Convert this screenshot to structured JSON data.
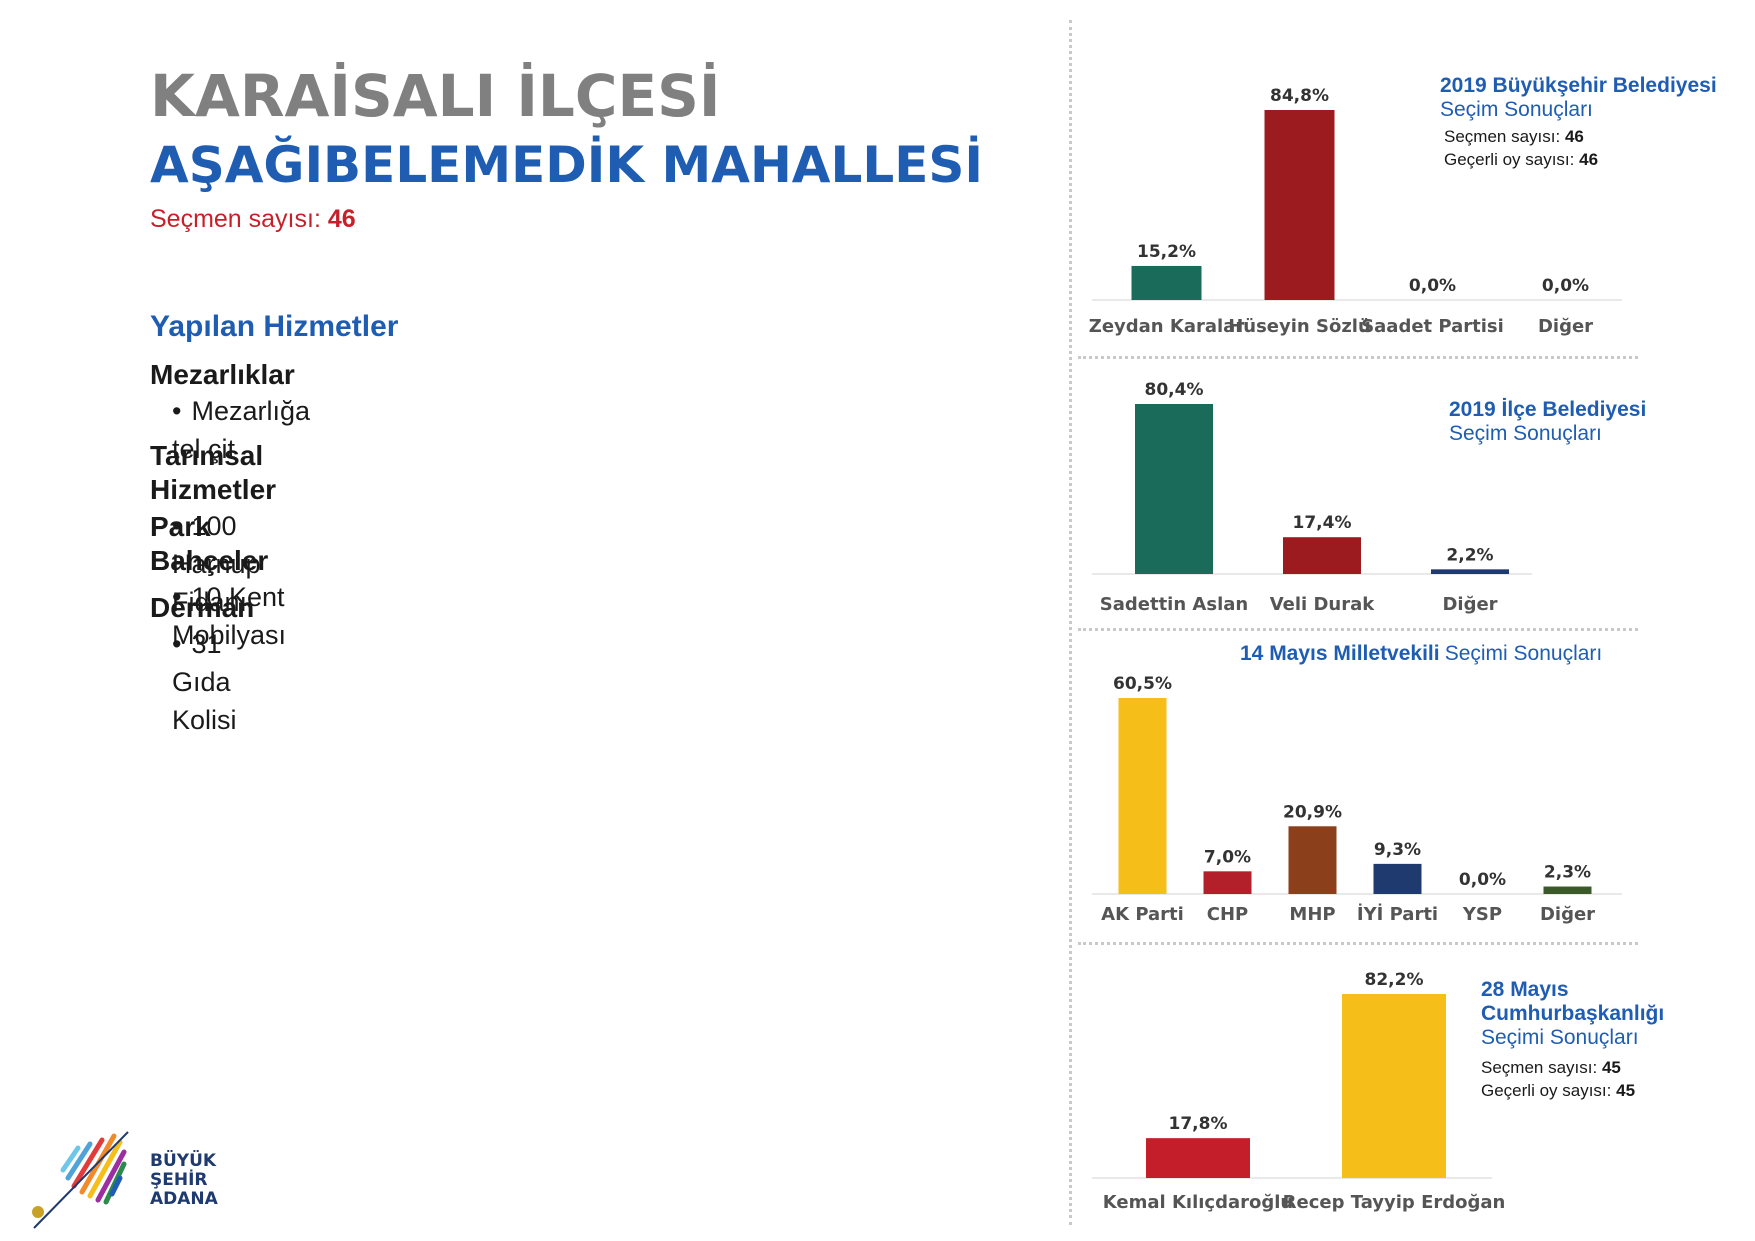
{
  "header": {
    "district": "KARAİSALI İLÇESİ",
    "neighborhood": "AŞAĞIBELEMEDİK MAHALLESİ",
    "voters_label": "Seçmen sayısı:",
    "voters_value": "46"
  },
  "services": {
    "title": "Yapılan Hizmetler",
    "groups": [
      {
        "heading": "Mezarlıklar",
        "items": [
          "Mezarlığa tel çit"
        ]
      },
      {
        "heading": "Tarımsal Hizmetler",
        "items": [
          "100 Harnup Fidanı"
        ]
      },
      {
        "heading": "Park Bahçeler",
        "items": [
          "10 Kent Mobilyası"
        ]
      },
      {
        "heading": "Derman",
        "items": [
          "31 Gıda Kolisi"
        ]
      }
    ]
  },
  "logo": {
    "line1": "BÜYÜK",
    "line2": "ŞEHİR",
    "line3": "ADANA"
  },
  "chart_data": [
    {
      "type": "bar",
      "title": "2019 Büyükşehir Belediyesi",
      "subtitle": "Seçim Sonuçları",
      "stats": [
        {
          "label": "Seçmen sayısı:",
          "value": "46"
        },
        {
          "label": "Geçerli oy sayısı:",
          "value": "46"
        }
      ],
      "categories": [
        "Zeydan Karalar",
        "Hüseyin Sözlü",
        "Saadet Partisi",
        "Diğer"
      ],
      "values": [
        15.2,
        84.8,
        0.0,
        0.0
      ],
      "value_labels": [
        "15,2%",
        "84,8%",
        "0,0%",
        "0,0%"
      ],
      "colors": [
        "#1a6b5a",
        "#9b1b1f",
        "#cccccc",
        "#cccccc"
      ],
      "ylim": [
        0,
        84.8
      ]
    },
    {
      "type": "bar",
      "title": "2019 İlçe Belediyesi",
      "subtitle": "Seçim Sonuçları",
      "stats": [],
      "categories": [
        "Sadettin Aslan",
        "Veli Durak",
        "Diğer"
      ],
      "values": [
        80.4,
        17.4,
        2.2
      ],
      "value_labels": [
        "80,4%",
        "17,4%",
        "2,2%"
      ],
      "colors": [
        "#1a6b5a",
        "#9b1b1f",
        "#1f3a6e"
      ],
      "ylim": [
        0,
        80.4
      ]
    },
    {
      "type": "bar",
      "title": "14 Mayıs Milletvekili",
      "subtitle": "Seçimi Sonuçları",
      "stats": [],
      "categories": [
        "AK Parti",
        "CHP",
        "MHP",
        "İYİ Parti",
        "YSP",
        "Diğer"
      ],
      "values": [
        60.5,
        7.0,
        20.9,
        9.3,
        0.0,
        2.3
      ],
      "value_labels": [
        "60,5%",
        "7,0%",
        "20,9%",
        "9,3%",
        "0,0%",
        "2,3%"
      ],
      "colors": [
        "#f6be18",
        "#b3202a",
        "#8b3f1a",
        "#1f3a6e",
        "#cccccc",
        "#3a5a2a"
      ],
      "ylim": [
        0,
        60.5
      ]
    },
    {
      "type": "bar",
      "title": "28 Mayıs Cumhurbaşkanlığı",
      "subtitle": "Seçimi Sonuçları",
      "stats": [
        {
          "label": "Seçmen sayısı:",
          "value": "45"
        },
        {
          "label": "Geçerli oy sayısı:",
          "value": "45"
        }
      ],
      "categories": [
        "Kemal Kılıçdaroğlu",
        "Recep Tayyip Erdoğan"
      ],
      "values": [
        17.8,
        82.2
      ],
      "value_labels": [
        "17,8%",
        "82,2%"
      ],
      "colors": [
        "#c41e2a",
        "#f6be18"
      ],
      "ylim": [
        0,
        82.2
      ]
    }
  ]
}
